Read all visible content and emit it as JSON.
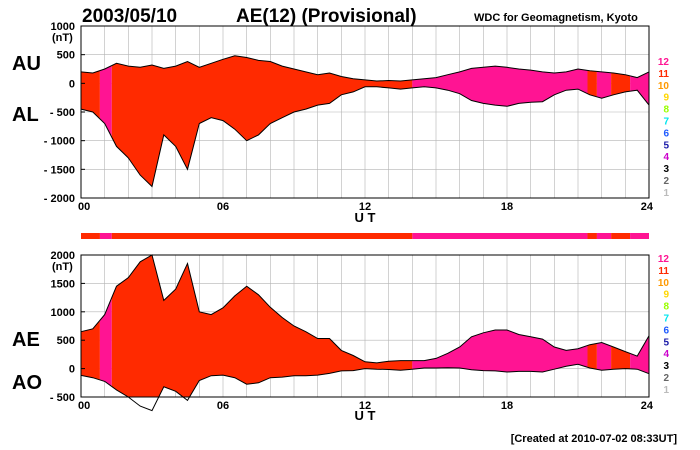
{
  "header": {
    "date": "2003/05/10",
    "title": "AE(12) (Provisional)",
    "source": "WDC for Geomagnetism, Kyoto"
  },
  "footer": {
    "created": "[Created at 2010-07-02 08:33UT]"
  },
  "station_legend": {
    "items": [
      {
        "label": "12",
        "color": "#ff1493"
      },
      {
        "label": "11",
        "color": "#ff2a00"
      },
      {
        "label": "10",
        "color": "#ff9900"
      },
      {
        "label": "9",
        "color": "#ffd700"
      },
      {
        "label": "8",
        "color": "#99ff00"
      },
      {
        "label": "7",
        "color": "#00e5ee"
      },
      {
        "label": "6",
        "color": "#1e5aff"
      },
      {
        "label": "5",
        "color": "#1a1aa8"
      },
      {
        "label": "4",
        "color": "#cc00cc"
      },
      {
        "label": "3",
        "color": "#000000"
      },
      {
        "label": "2",
        "color": "#666666"
      },
      {
        "label": "1",
        "color": "#bbbbbb"
      }
    ]
  },
  "colors": {
    "high_count": "#ff2a00",
    "low_count": "#ff1493",
    "outline": "#000000",
    "grid": "#b4b4b4"
  },
  "chart_data": [
    {
      "type": "area",
      "panel": "AU/AL",
      "series_labels": [
        "AU",
        "AL"
      ],
      "unit": "(nT)",
      "xlabel": "U T",
      "xlim": [
        0,
        24
      ],
      "x_ticks": [
        "00",
        "06",
        "12",
        "18",
        "24"
      ],
      "ylim": [
        -2000,
        1000
      ],
      "y_ticks": [
        "1000",
        "500",
        "0",
        "- 500",
        "- 1000",
        "- 1500",
        "- 2000"
      ],
      "grid": true,
      "x": [
        0,
        0.5,
        1,
        1.5,
        2,
        2.5,
        3,
        3.5,
        4,
        4.5,
        5,
        5.5,
        6,
        6.5,
        7,
        7.5,
        8,
        8.5,
        9,
        9.5,
        10,
        10.5,
        11,
        11.5,
        12,
        12.5,
        13,
        13.5,
        14,
        14.5,
        15,
        15.5,
        16,
        16.5,
        17,
        17.5,
        18,
        18.5,
        19,
        19.5,
        20,
        20.5,
        21,
        21.5,
        22,
        22.5,
        23,
        23.5,
        24
      ],
      "series": [
        {
          "name": "AU",
          "values": [
            200,
            180,
            250,
            350,
            300,
            280,
            320,
            260,
            300,
            380,
            280,
            350,
            420,
            480,
            450,
            400,
            380,
            300,
            250,
            200,
            150,
            180,
            120,
            80,
            60,
            40,
            50,
            40,
            60,
            80,
            100,
            150,
            200,
            260,
            280,
            300,
            280,
            250,
            230,
            200,
            180,
            200,
            250,
            220,
            200,
            180,
            150,
            100,
            200
          ]
        },
        {
          "name": "AL",
          "values": [
            -450,
            -500,
            -700,
            -1100,
            -1300,
            -1600,
            -1800,
            -900,
            -1100,
            -1500,
            -700,
            -600,
            -650,
            -800,
            -1000,
            -900,
            -700,
            -600,
            -500,
            -450,
            -380,
            -350,
            -200,
            -150,
            -60,
            -60,
            -80,
            -100,
            -80,
            -60,
            -80,
            -120,
            -180,
            -300,
            -350,
            -380,
            -400,
            -350,
            -330,
            -320,
            -200,
            -120,
            -100,
            -200,
            -260,
            -200,
            -150,
            -120,
            -380
          ]
        }
      ],
      "segment_switch_hours": [
        {
          "from": 0,
          "to": 0.8,
          "color_key": "high_count"
        },
        {
          "from": 0.8,
          "to": 1.3,
          "color_key": "low_count"
        },
        {
          "from": 1.3,
          "to": 14,
          "color_key": "high_count"
        },
        {
          "from": 14,
          "to": 21.4,
          "color_key": "low_count"
        },
        {
          "from": 21.4,
          "to": 21.8,
          "color_key": "high_count"
        },
        {
          "from": 21.8,
          "to": 22.4,
          "color_key": "low_count"
        },
        {
          "from": 22.4,
          "to": 23.2,
          "color_key": "high_count"
        },
        {
          "from": 23.2,
          "to": 24,
          "color_key": "low_count"
        }
      ]
    },
    {
      "type": "area",
      "panel": "AE/AO",
      "series_labels": [
        "AE",
        "AO"
      ],
      "unit": "(nT)",
      "xlabel": "U T",
      "xlim": [
        0,
        24
      ],
      "x_ticks": [
        "00",
        "06",
        "12",
        "18",
        "24"
      ],
      "ylim": [
        -500,
        2000
      ],
      "y_ticks": [
        "2000",
        "1500",
        "1000",
        "500",
        "0",
        "- 500"
      ],
      "grid": true,
      "x": [
        0,
        0.5,
        1,
        1.5,
        2,
        2.5,
        3,
        3.5,
        4,
        4.5,
        5,
        5.5,
        6,
        6.5,
        7,
        7.5,
        8,
        8.5,
        9,
        9.5,
        10,
        10.5,
        11,
        11.5,
        12,
        12.5,
        13,
        13.5,
        14,
        14.5,
        15,
        15.5,
        16,
        16.5,
        17,
        17.5,
        18,
        18.5,
        19,
        19.5,
        20,
        20.5,
        21,
        21.5,
        22,
        22.5,
        23,
        23.5,
        24
      ],
      "series": [
        {
          "name": "AE",
          "values": [
            650,
            700,
            950,
            1450,
            1600,
            1880,
            2000,
            1200,
            1400,
            1850,
            1000,
            950,
            1070,
            1280,
            1450,
            1300,
            1080,
            900,
            750,
            650,
            530,
            530,
            320,
            230,
            120,
            100,
            130,
            140,
            140,
            140,
            180,
            270,
            380,
            560,
            630,
            680,
            680,
            600,
            560,
            520,
            380,
            320,
            350,
            420,
            460,
            380,
            300,
            220,
            580
          ]
        },
        {
          "name": "AO",
          "values": [
            -120,
            -160,
            -225,
            -375,
            -500,
            -660,
            -740,
            -320,
            -400,
            -560,
            -210,
            -125,
            -115,
            -160,
            -275,
            -250,
            -160,
            -150,
            -125,
            -125,
            -115,
            -85,
            -40,
            -35,
            0,
            -10,
            -15,
            -30,
            -10,
            10,
            10,
            15,
            10,
            -20,
            -35,
            -40,
            -60,
            -50,
            -50,
            -60,
            -10,
            40,
            75,
            10,
            -30,
            -10,
            0,
            -10,
            -90
          ]
        }
      ],
      "segment_switch_hours": [
        {
          "from": 0,
          "to": 0.8,
          "color_key": "high_count"
        },
        {
          "from": 0.8,
          "to": 1.3,
          "color_key": "low_count"
        },
        {
          "from": 1.3,
          "to": 14,
          "color_key": "high_count"
        },
        {
          "from": 14,
          "to": 21.4,
          "color_key": "low_count"
        },
        {
          "from": 21.4,
          "to": 21.8,
          "color_key": "high_count"
        },
        {
          "from": 21.8,
          "to": 22.4,
          "color_key": "low_count"
        },
        {
          "from": 22.4,
          "to": 23.2,
          "color_key": "high_count"
        },
        {
          "from": 23.2,
          "to": 24,
          "color_key": "low_count"
        }
      ]
    }
  ]
}
